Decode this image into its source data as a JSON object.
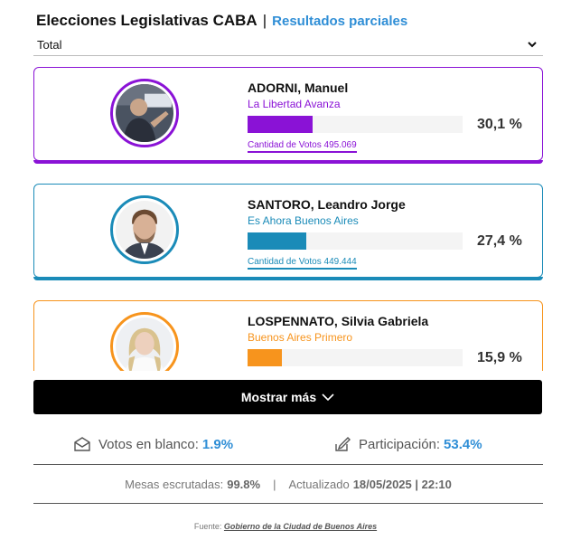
{
  "header": {
    "title": "Elecciones Legislativas CABA",
    "separator": "|",
    "subtitle": "Resultados parciales"
  },
  "filter": {
    "selected": "Total"
  },
  "candidates": [
    {
      "name": "ADORNI, Manuel",
      "party": "La Libertad Avanza",
      "percent_label": "30,1 %",
      "percent": 30.1,
      "votes_label": "Cantidad de Votos 495.069",
      "color": "#8a12d6",
      "avatar_icon": "candidate-photo-icon"
    },
    {
      "name": "SANTORO, Leandro Jorge",
      "party": "Es Ahora Buenos Aires",
      "percent_label": "27,4 %",
      "percent": 27.4,
      "votes_label": "Cantidad de Votos 449.444",
      "color": "#1a8bb8",
      "avatar_icon": "candidate-photo-icon"
    },
    {
      "name": "LOSPENNATO, Silvia Gabriela",
      "party": "Buenos Aires Primero",
      "percent_label": "15,9 %",
      "percent": 15.9,
      "votes_label": "",
      "color": "#f7941d",
      "avatar_icon": "candidate-photo-icon"
    }
  ],
  "show_more": {
    "label": "Mostrar más"
  },
  "stats": {
    "blank_label": "Votos en blanco:",
    "blank_value": "1.9%",
    "participation_label": "Participación:",
    "participation_value": "53.4%"
  },
  "mesas": {
    "label": "Mesas escrutadas:",
    "value": "99.8%",
    "separator": "|",
    "updated_label": "Actualizado",
    "updated_value": "18/05/2025 | 22:10"
  },
  "footer": {
    "label": "Fuente:",
    "link": "Gobierno de la Ciudad de Buenos Aires"
  },
  "colors": {
    "accent_blue": "#2f8ed6",
    "button_bg": "#000000"
  }
}
